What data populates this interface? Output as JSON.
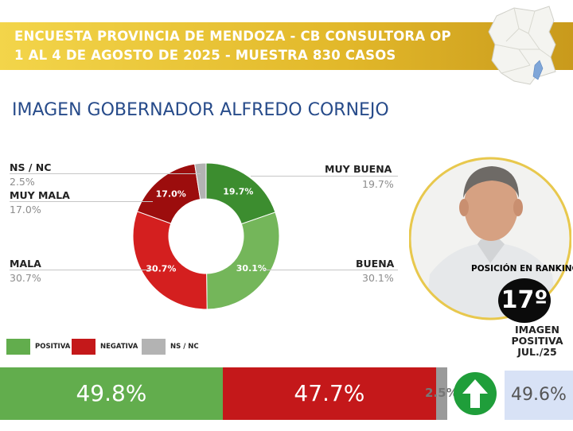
{
  "header": {
    "line1": "ENCUESTA PROVINCIA DE MENDOZA - CB CONSULTORA OP",
    "line2": "1 AL 4 DE AGOSTO DE 2025 - MUESTRA 830 CASOS"
  },
  "title": "IMAGEN GOBERNADOR  ALFREDO CORNEJO",
  "ranking": {
    "label": "POSICIÓN EN RANKING",
    "position": "17º"
  },
  "previous": {
    "label_lines": [
      "IMAGEN",
      "POSITIVA",
      "JUL./25"
    ],
    "value": "49.6%"
  },
  "colors": {
    "muy_buena": "#3c8d2f",
    "buena": "#74b65a",
    "mala": "#d41f1f",
    "muy_mala": "#9c0d0d",
    "ns_nc": "#b3b3b3",
    "bar_positive": "#62ad4d",
    "bar_negative": "#c4181a",
    "bar_ns": "#9a9a9a"
  },
  "chart_data": [
    {
      "type": "pie",
      "categories": [
        "MUY BUENA",
        "BUENA",
        "MALA",
        "MUY MALA",
        "NS / NC"
      ],
      "values": [
        19.7,
        30.1,
        30.7,
        17.0,
        2.5
      ],
      "slice_labels": [
        "19.7%",
        "30.1%",
        "30.7%",
        "17.0%",
        ""
      ],
      "value_labels": [
        "19.7%",
        "30.1%",
        "30.7%",
        "17.0%",
        "2.5%"
      ]
    },
    {
      "type": "bar",
      "categories": [
        "POSITIVA",
        "NEGATIVA",
        "NS / NC"
      ],
      "values": [
        49.8,
        47.7,
        2.5
      ],
      "value_labels": [
        "49.8%",
        "47.7%",
        "2.5%"
      ]
    }
  ]
}
